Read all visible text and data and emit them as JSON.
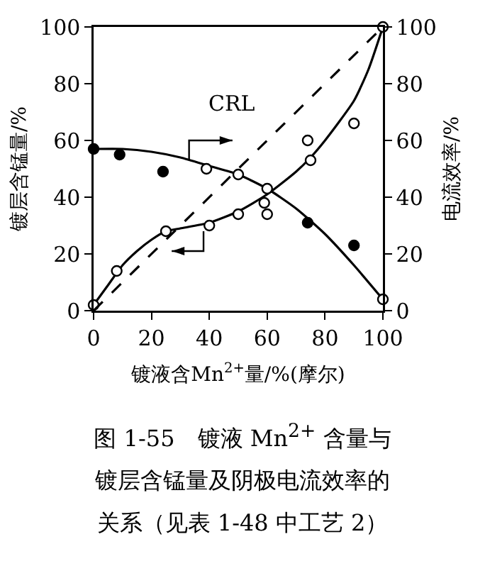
{
  "chart_data": {
    "type": "scatter",
    "title": "图 1-55　镀液 Mn$^{2+}$ 含量与镀层含锰量及阴极电流效率的关系（见表 1-48 中工艺 2）",
    "xlabel": "镀液含Mn$^{2+}$量/%(摩尔)",
    "ylabel": "镀层含锰量/%",
    "y2label": "电流效率/%",
    "xlim": [
      0,
      100
    ],
    "xticks": [
      0,
      20,
      40,
      60,
      80,
      100
    ],
    "ylim": [
      0,
      100
    ],
    "yticks": [
      0,
      20,
      40,
      60,
      80,
      100
    ],
    "y2lim": [
      0,
      100
    ],
    "y2ticks": [
      0,
      20,
      40,
      60,
      80,
      100
    ],
    "grid": false,
    "series": [
      {
        "type": "line",
        "color": "#000000",
        "line_style": "solid",
        "marker": "none",
        "x": [
          0,
          5,
          10,
          15,
          20,
          25,
          30,
          40,
          50,
          60,
          70,
          75,
          80,
          90,
          95,
          100
        ],
        "values": [
          2,
          9,
          16,
          21,
          25,
          28,
          29,
          31,
          35,
          41,
          49,
          54,
          60,
          74,
          85,
          100
        ]
      },
      {
        "type": "scatter",
        "color": "#000000",
        "marker": "circle",
        "colors": [
          "#ffffff",
          "#ffffff",
          "#ffffff",
          "#ffffff",
          "#ffffff",
          "#ffffff",
          "#ffffff",
          "#ffffff",
          "#ffffff",
          "#ffffff",
          "#ffffff"
        ],
        "x": [
          0,
          8,
          25,
          40,
          50,
          59,
          60,
          74,
          75,
          90,
          100
        ],
        "values": [
          2,
          14,
          28,
          30,
          34,
          38,
          34,
          60,
          53,
          66,
          100
        ]
      },
      {
        "type": "line",
        "axis": "y2",
        "color": "#000000",
        "line_style": "solid",
        "marker": "none",
        "x": [
          0,
          10,
          20,
          30,
          40,
          50,
          60,
          70,
          80,
          90,
          100
        ],
        "values": [
          57,
          57,
          56,
          54,
          51,
          48,
          43,
          36,
          27,
          16,
          4
        ]
      },
      {
        "type": "scatter",
        "axis": "y2",
        "color": "#000000",
        "marker": "circle",
        "colors": [
          "#000000",
          "#000000",
          "#000000",
          "#ffffff",
          "#ffffff",
          "#ffffff",
          "#000000",
          "#000000",
          "#ffffff"
        ],
        "x": [
          0,
          9,
          24,
          39,
          50,
          60,
          74,
          90,
          100
        ],
        "values": [
          57,
          55,
          49,
          50,
          48,
          43,
          31,
          23,
          4
        ]
      },
      {
        "type": "line",
        "name": "CRL",
        "color": "#000000",
        "line_style": "dashed",
        "marker": "none",
        "x": [
          0,
          100
        ],
        "values": [
          0,
          100
        ]
      }
    ]
  }
}
